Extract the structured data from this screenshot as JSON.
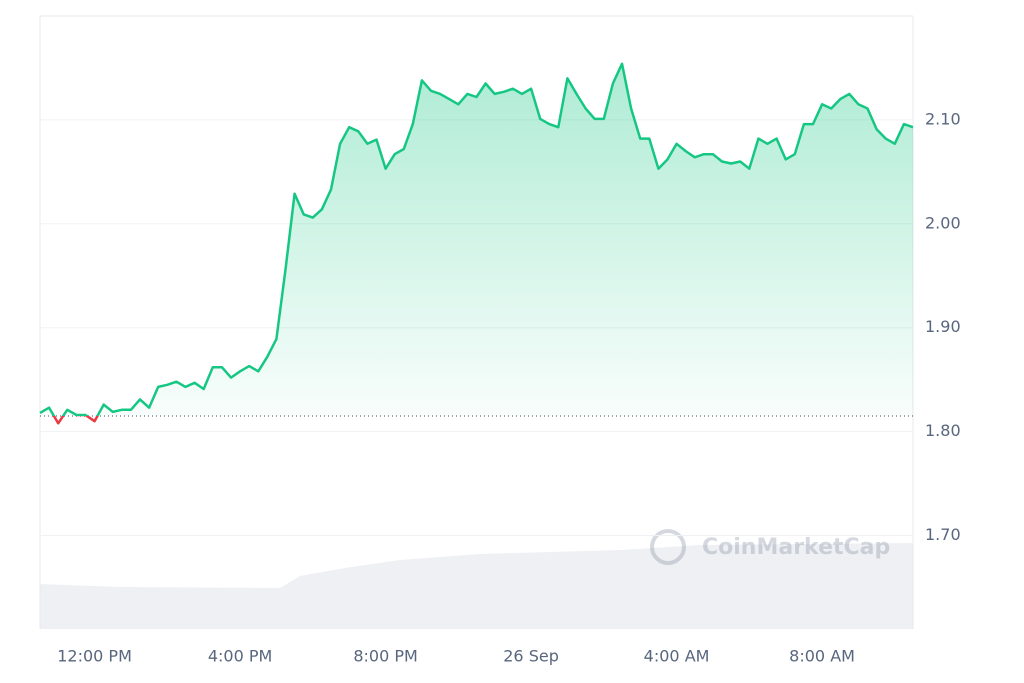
{
  "chart_data": {
    "type": "line",
    "watermark": "CoinMarketCap",
    "categories": [
      null,
      null,
      null,
      null,
      null,
      null,
      "12:00 PM",
      null,
      null,
      null,
      null,
      null,
      null,
      null,
      null,
      null,
      null,
      null,
      null,
      null,
      null,
      null,
      "4:00 PM",
      null,
      null,
      null,
      null,
      null,
      null,
      null,
      null,
      null,
      null,
      null,
      null,
      null,
      null,
      null,
      "8:00 PM",
      null,
      null,
      null,
      null,
      null,
      null,
      null,
      null,
      null,
      null,
      null,
      null,
      null,
      null,
      null,
      "26 Sep",
      null,
      null,
      null,
      null,
      null,
      null,
      null,
      null,
      null,
      null,
      null,
      null,
      null,
      null,
      null,
      "4:00 AM",
      null,
      null,
      null,
      null,
      null,
      null,
      null,
      null,
      null,
      null,
      null,
      null,
      null,
      null,
      null,
      "8:00 AM",
      null,
      null,
      null,
      null,
      null,
      null,
      null,
      null,
      null,
      null
    ],
    "values": [
      1.818,
      1.823,
      1.808,
      1.821,
      1.816,
      1.816,
      1.81,
      1.826,
      1.819,
      1.821,
      1.821,
      1.831,
      1.823,
      1.843,
      1.845,
      1.848,
      1.843,
      1.847,
      1.841,
      1.862,
      1.862,
      1.852,
      1.858,
      1.863,
      1.858,
      1.872,
      1.889,
      1.956,
      2.029,
      2.009,
      2.006,
      2.014,
      2.033,
      2.077,
      2.093,
      2.089,
      2.077,
      2.081,
      2.053,
      2.067,
      2.072,
      2.096,
      2.138,
      2.128,
      2.125,
      2.12,
      2.115,
      2.125,
      2.122,
      2.135,
      2.125,
      2.127,
      2.13,
      2.125,
      2.13,
      2.101,
      2.096,
      2.093,
      2.14,
      2.125,
      2.111,
      2.101,
      2.101,
      2.135,
      2.154,
      2.111,
      2.082,
      2.082,
      2.053,
      2.062,
      2.077,
      2.07,
      2.064,
      2.067,
      2.067,
      2.06,
      2.058,
      2.06,
      2.053,
      2.082,
      2.077,
      2.082,
      2.062,
      2.067,
      2.096,
      2.096,
      2.115,
      2.111,
      2.12,
      2.125,
      2.115,
      2.111,
      2.091,
      2.082,
      2.077,
      2.096,
      2.093
    ],
    "color": "#16c784",
    "below_color": "#ea3943",
    "baseline": 1.815,
    "ylim": [
      1.61,
      2.2
    ],
    "yticks": [
      {
        "value": 1.7,
        "label": "1.70"
      },
      {
        "value": 1.8,
        "label": "1.80"
      },
      {
        "value": 1.9,
        "label": "1.90"
      },
      {
        "value": 2.0,
        "label": "2.00"
      },
      {
        "value": 2.1,
        "label": "2.10"
      }
    ],
    "grid": true
  }
}
